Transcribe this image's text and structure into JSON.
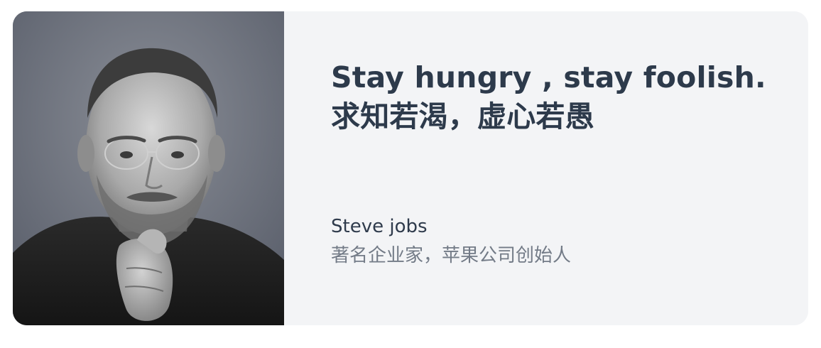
{
  "quote": {
    "line1": "Stay hungry , stay foolish.",
    "line2": "求知若渴，虚心若愚"
  },
  "author": {
    "name": "Steve jobs",
    "description": "著名企业家，苹果公司创始人"
  },
  "photo": {
    "icon": "portrait-photo"
  },
  "colors": {
    "card_background": "#f3f4f6",
    "quote_text": "#2d3a4b",
    "author_name": "#2f3b4c",
    "author_desc": "#737b87"
  }
}
